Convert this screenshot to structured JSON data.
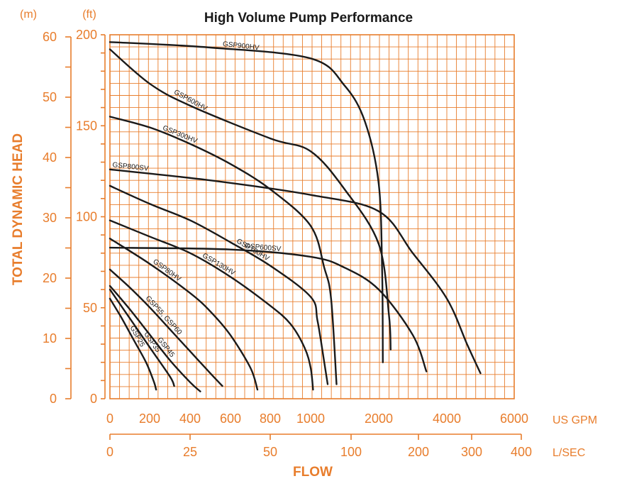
{
  "chart_data": {
    "type": "line",
    "title": "High Volume Pump Performance",
    "ylabel": "TOTAL DYNAMIC HEAD",
    "xlabel": "FLOW",
    "y_unit_left": "(m)",
    "y_unit_right": "(ft)",
    "x_unit_top": "US GPM",
    "x_unit_bottom": "L/SEC",
    "grid": true,
    "head_m_ticks": [
      "60",
      "50",
      "40",
      "30",
      "20",
      "10",
      "0"
    ],
    "head_ft_ticks": [
      "200",
      "150",
      "100",
      "50",
      "0"
    ],
    "flow_gpm_ticks": [
      "0",
      "200",
      "400",
      "600",
      "800",
      "1000",
      "2000",
      "4000",
      "6000"
    ],
    "flow_lsec_ticks": [
      "0",
      "25",
      "50",
      "100",
      "200",
      "300",
      "400"
    ],
    "ylim_ft": [
      0,
      200
    ],
    "xlim_gpm": [
      0,
      6000
    ],
    "x_scale": "piecewise: 0-1000 GPM linear, 1000-6000 GPM compressed",
    "series": [
      {
        "name": "GSP900HV",
        "points": [
          [
            0,
            196
          ],
          [
            500,
            193
          ],
          [
            1000,
            187
          ],
          [
            1500,
            172
          ],
          [
            1800,
            152
          ],
          [
            2000,
            118
          ],
          [
            2100,
            70
          ],
          [
            2120,
            20
          ]
        ]
      },
      {
        "name": "GSP600HV",
        "points": [
          [
            0,
            192
          ],
          [
            200,
            173
          ],
          [
            400,
            161
          ],
          [
            800,
            143
          ],
          [
            1000,
            136
          ],
          [
            1500,
            115
          ],
          [
            2000,
            85
          ],
          [
            2300,
            46
          ],
          [
            2350,
            27
          ]
        ]
      },
      {
        "name": "GSP300HV",
        "points": [
          [
            0,
            155
          ],
          [
            200,
            149
          ],
          [
            400,
            140
          ],
          [
            600,
            129
          ],
          [
            800,
            115
          ],
          [
            1000,
            95
          ],
          [
            1200,
            72
          ],
          [
            1300,
            55
          ],
          [
            1380,
            8
          ]
        ]
      },
      {
        "name": "GSP800SV",
        "points": [
          [
            0,
            126
          ],
          [
            500,
            120
          ],
          [
            1000,
            112
          ],
          [
            2000,
            103
          ],
          [
            3000,
            80
          ],
          [
            4000,
            55
          ],
          [
            4600,
            30
          ],
          [
            5000,
            14
          ]
        ]
      },
      {
        "name": "GSP600SV",
        "points": [
          [
            0,
            83
          ],
          [
            600,
            82
          ],
          [
            1000,
            78
          ],
          [
            1500,
            72
          ],
          [
            2000,
            60
          ],
          [
            3000,
            35
          ],
          [
            3400,
            15
          ]
        ]
      },
      {
        "name": "GSP160HV",
        "points": [
          [
            0,
            117
          ],
          [
            200,
            107
          ],
          [
            400,
            98
          ],
          [
            600,
            86
          ],
          [
            800,
            73
          ],
          [
            1000,
            56
          ],
          [
            1100,
            43
          ],
          [
            1200,
            20
          ],
          [
            1250,
            8
          ]
        ]
      },
      {
        "name": "GSP130HV",
        "points": [
          [
            0,
            98
          ],
          [
            200,
            89
          ],
          [
            400,
            80
          ],
          [
            600,
            67
          ],
          [
            800,
            51
          ],
          [
            900,
            41
          ],
          [
            970,
            28
          ],
          [
            1000,
            17
          ],
          [
            1035,
            5
          ]
        ]
      },
      {
        "name": "GSP80HV",
        "points": [
          [
            0,
            88
          ],
          [
            200,
            74
          ],
          [
            400,
            58
          ],
          [
            500,
            48
          ],
          [
            600,
            35
          ],
          [
            700,
            17
          ],
          [
            735,
            5
          ]
        ]
      },
      {
        "name": "GSP55, GSP60",
        "points": [
          [
            0,
            71
          ],
          [
            100,
            61
          ],
          [
            200,
            50
          ],
          [
            300,
            38
          ],
          [
            400,
            26
          ],
          [
            500,
            14
          ],
          [
            560,
            7
          ]
        ]
      },
      {
        "name": "GSP45",
        "points": [
          [
            0,
            62
          ],
          [
            100,
            49
          ],
          [
            200,
            35
          ],
          [
            300,
            21
          ],
          [
            400,
            9
          ],
          [
            450,
            4
          ]
        ]
      },
      {
        "name": "GSP35",
        "points": [
          [
            0,
            60
          ],
          [
            100,
            44
          ],
          [
            200,
            28
          ],
          [
            300,
            12
          ],
          [
            320,
            7
          ]
        ]
      },
      {
        "name": "GSP25",
        "points": [
          [
            0,
            55
          ],
          [
            60,
            44
          ],
          [
            120,
            32
          ],
          [
            180,
            20
          ],
          [
            220,
            9
          ],
          [
            230,
            5
          ]
        ]
      }
    ]
  }
}
